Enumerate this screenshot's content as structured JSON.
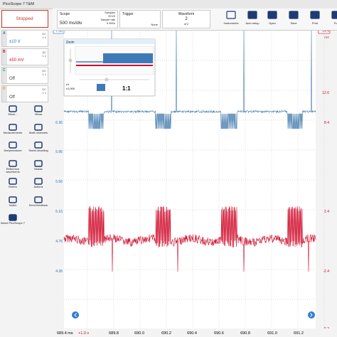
{
  "window_title": "PicoScope 7 T&M",
  "run_button": "Stopped",
  "channels": [
    {
      "letter": "A",
      "coupling": "DC",
      "probe": "1 x",
      "range": "±10 V"
    },
    {
      "letter": "B",
      "coupling": "AC",
      "probe": "1 x",
      "range": "±50 mV"
    },
    {
      "letter": "C",
      "coupling": "DC",
      "probe": "1 x",
      "range": "Off"
    },
    {
      "letter": "D",
      "coupling": "DC",
      "probe": "1 x",
      "range": "Off"
    }
  ],
  "tools": [
    "Move...",
    "Views",
    "Measurements",
    "Math channels",
    "Deepmeasure",
    "Serial decoding",
    "Reference waveforms",
    "Masks",
    "Rulers",
    "Actions",
    "Notes",
    "Send feedback",
    "About PicoScope 7"
  ],
  "toolbar": {
    "scope": {
      "label": "Scope",
      "timebase": "500 ms/div",
      "samples_label": "Samples",
      "samples": "25 kS",
      "rate_label": "Sample rate",
      "rate": "5 MS/s"
    },
    "trigger": {
      "label": "Trigger",
      "mode": "None"
    },
    "waveform": {
      "label": "Waveform",
      "current": "2",
      "total": "of 2"
    },
    "buttons": [
      "Instruments",
      "Auto setup",
      "Open",
      "Save",
      "Print",
      "Full"
    ]
  },
  "zoom": {
    "title": "Zoom",
    "x_label": "x1",
    "x2_label": "x1,000",
    "ratio": "1:1"
  },
  "axes": {
    "left": [
      "7.56",
      "6.36",
      "5.96",
      "5.56",
      "5.16",
      "4.76",
      "4.36"
    ],
    "right": [
      "14.4",
      "12.6",
      "8.4",
      "2.4",
      "-2.4",
      "-5.3"
    ],
    "right_unit": "mV",
    "x_start": "689.4 ms",
    "x_offset": "+1.0 s",
    "x": [
      "689.8",
      "690.0",
      "690.2",
      "690.4",
      "690.6",
      "690.8",
      "691.0",
      "691.2"
    ]
  }
}
